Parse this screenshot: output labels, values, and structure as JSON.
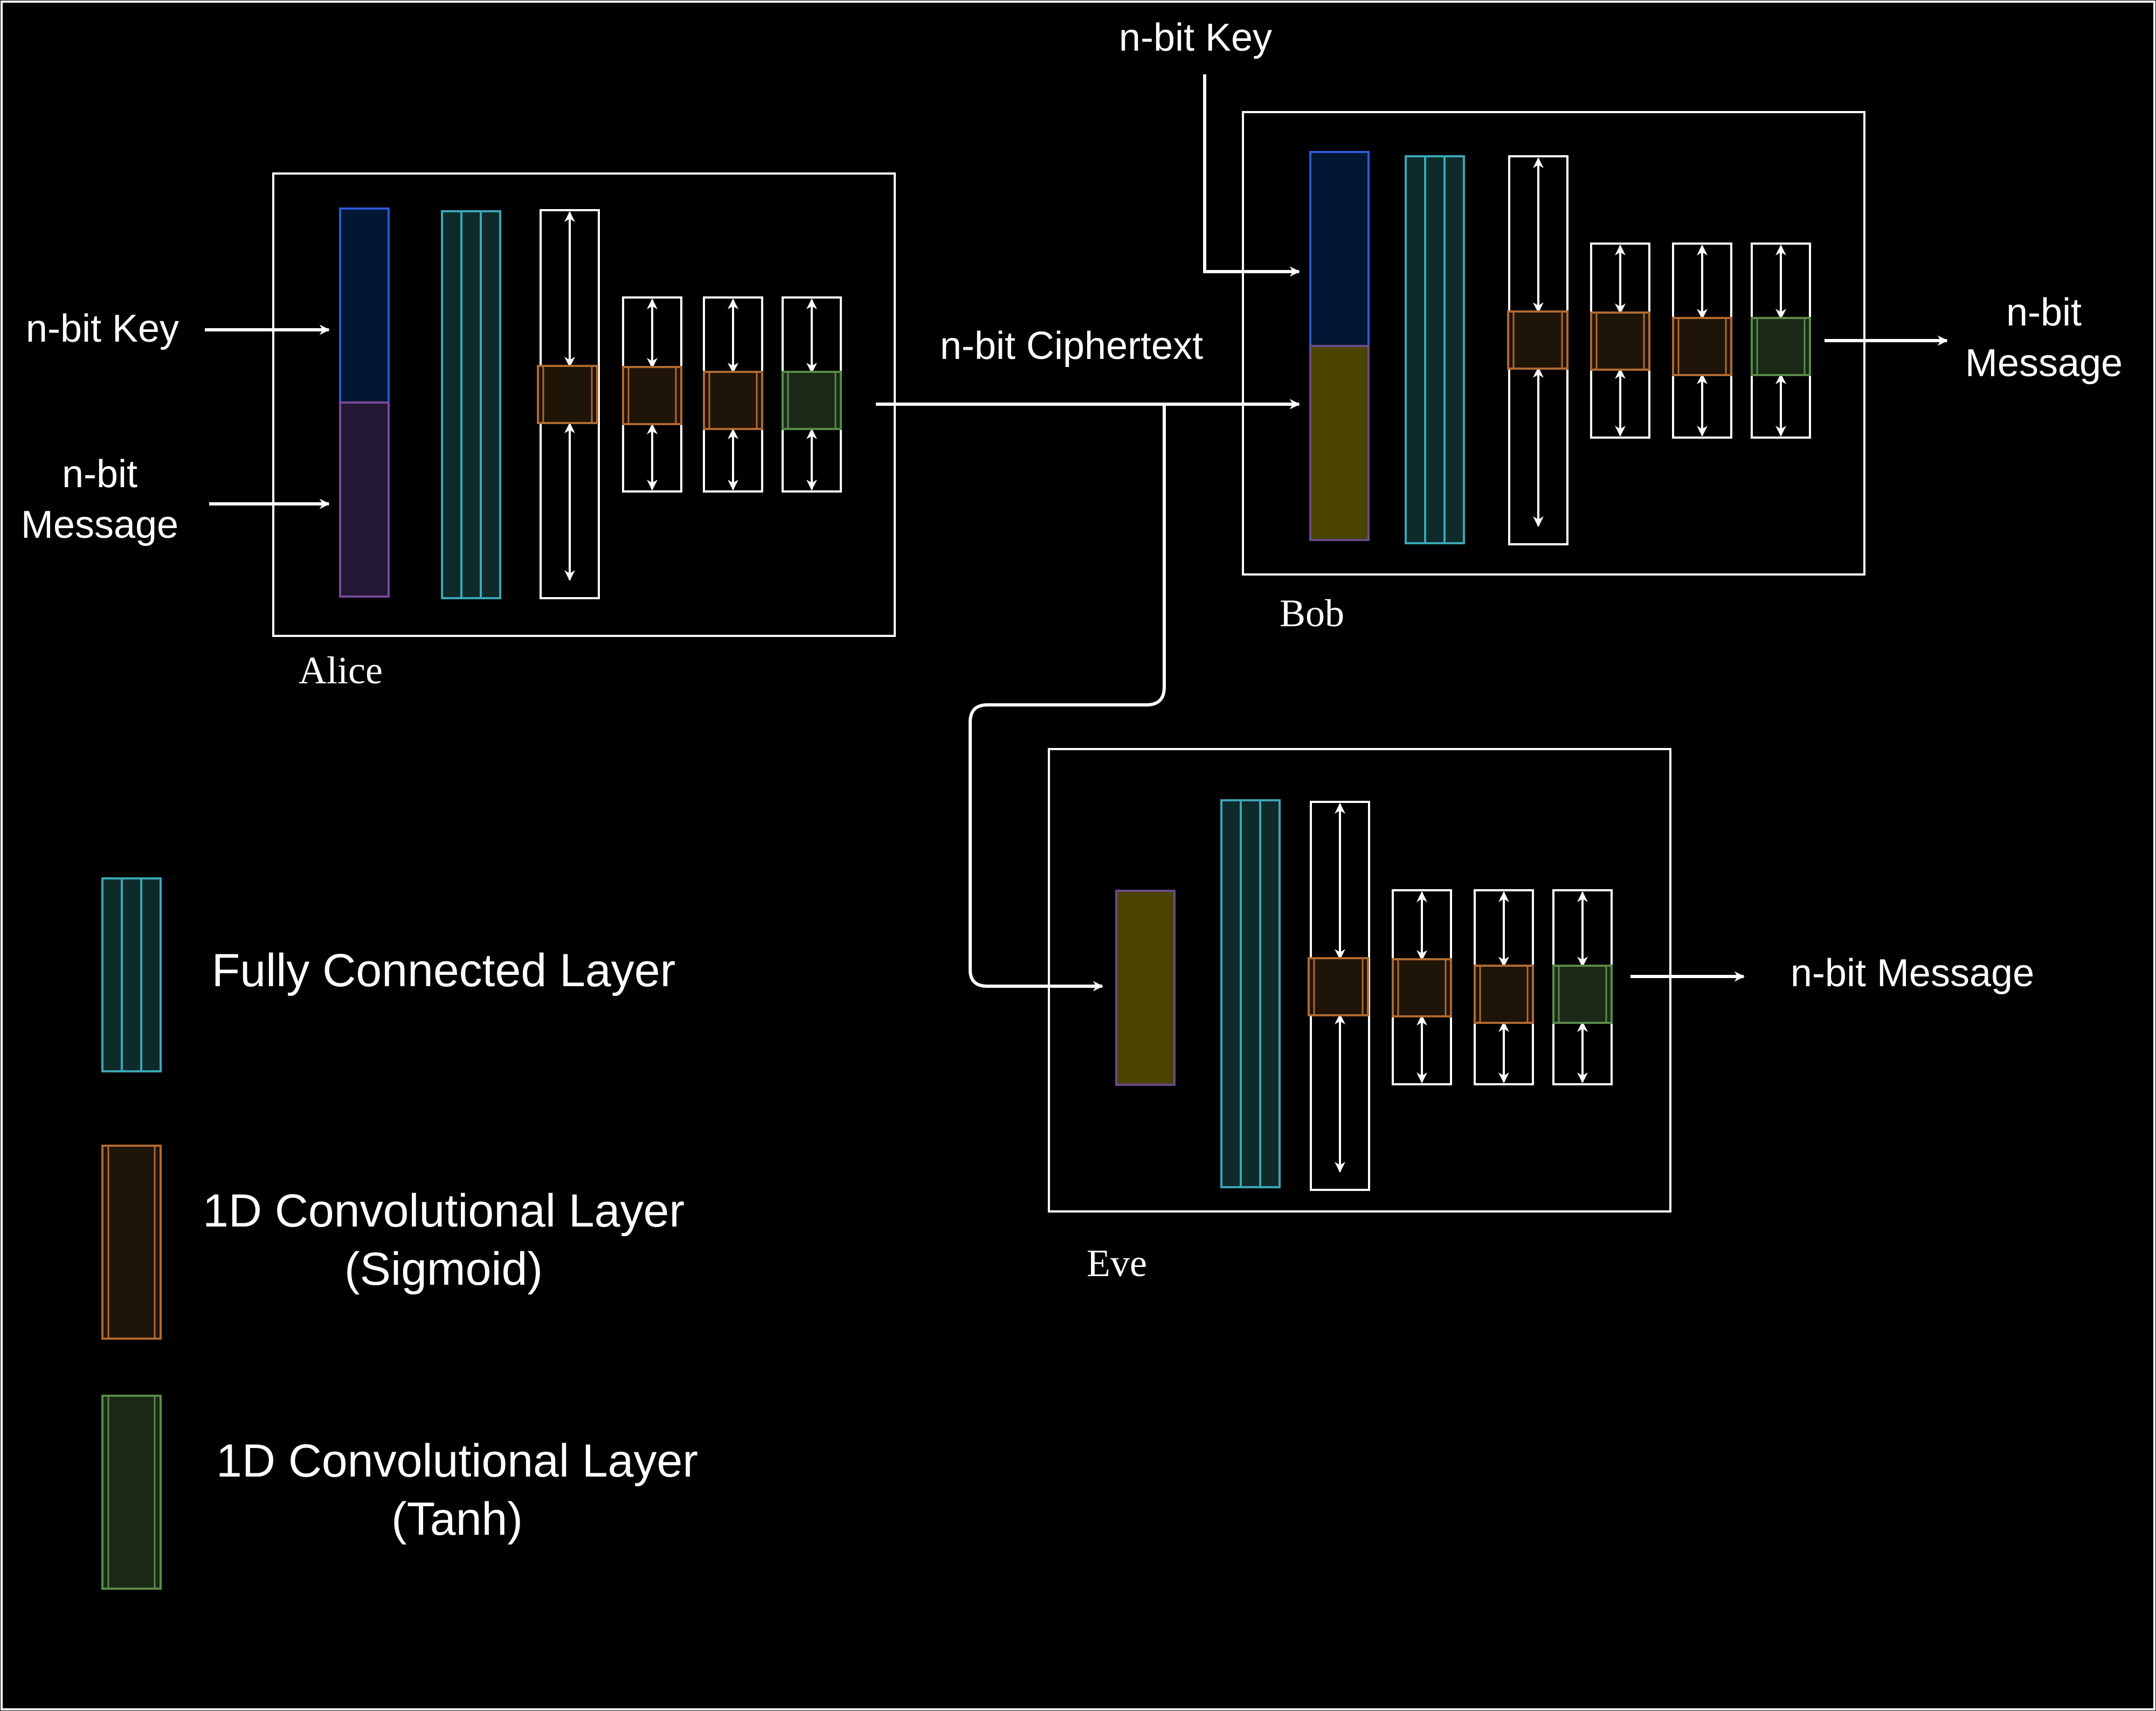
{
  "colors": {
    "background": "#000000",
    "line": "#ffffff",
    "key_block_fill": "#021733",
    "key_block_stroke": "#2a5ad8",
    "message_block_fill": "#231833",
    "message_block_stroke": "#7a4a9a",
    "ciphertext_block_fill": "#4a4400",
    "ciphertext_block_stroke": "#6a4a8a",
    "fc_fill": "#0f2a2a",
    "fc_stroke": "#3aa8b8",
    "conv_sigmoid_fill": "#1f1408",
    "conv_sigmoid_stroke": "#b06a30",
    "conv_tanh_fill": "#1a2a17",
    "conv_tanh_stroke": "#5a8a4a"
  },
  "alice": {
    "label": "Alice",
    "input_key": "n-bit Key",
    "input_message_line1": "n-bit",
    "input_message_line2": "Message"
  },
  "channel": {
    "label": "n-bit Ciphertext"
  },
  "bob": {
    "label": "Bob",
    "input_key": "n-bit Key",
    "output_line1": "n-bit",
    "output_line2": "Message"
  },
  "eve": {
    "label": "Eve",
    "output": "n-bit Message"
  },
  "legend": {
    "fully_connected": "Fully Connected Layer",
    "conv_sigmoid_line1": "1D Convolutional Layer",
    "conv_sigmoid_line2": "(Sigmoid)",
    "conv_tanh_line1": "1D Convolutional Layer",
    "conv_tanh_line2": "(Tanh)"
  }
}
